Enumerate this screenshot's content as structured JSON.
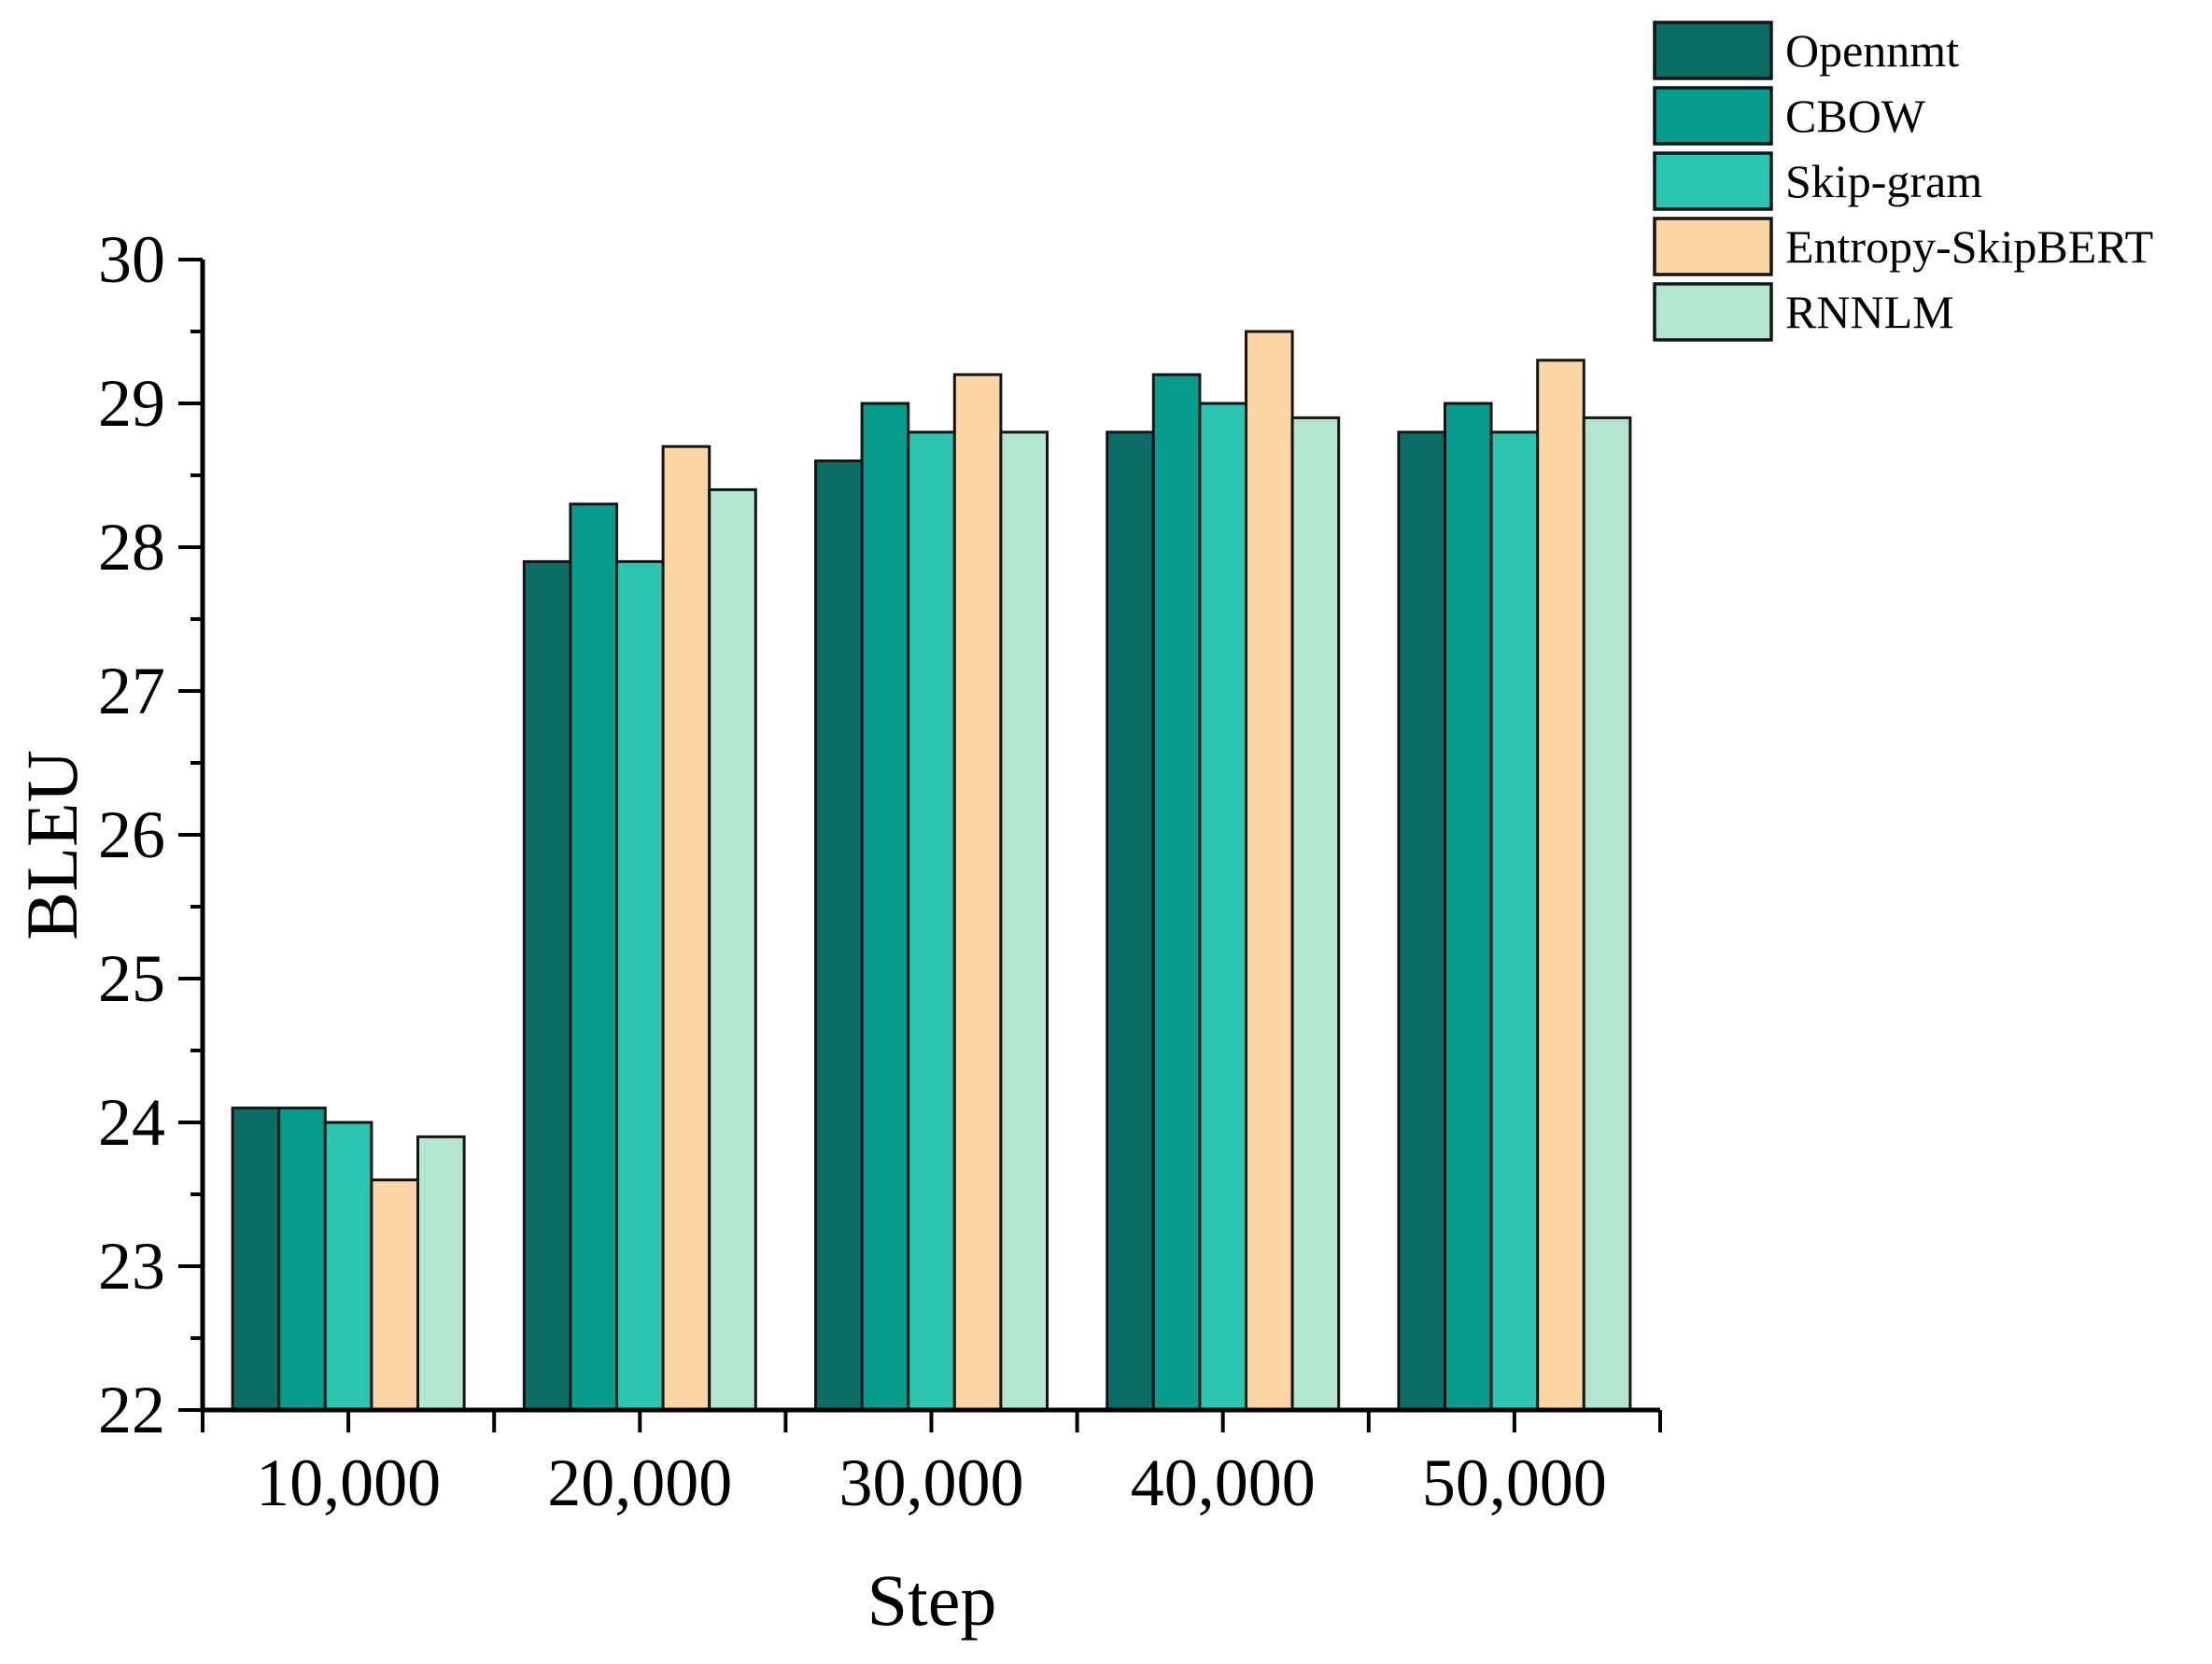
{
  "figure": {
    "background": "#ffffff",
    "axis_color": "#000000",
    "bar_edge_color": "#141414"
  },
  "chart_data": {
    "type": "bar",
    "title": "",
    "xlabel": "Step",
    "ylabel": "BLEU",
    "categories": [
      "10,000",
      "20,000",
      "30,000",
      "40,000",
      "50,000"
    ],
    "series": [
      {
        "name": "Opennmt",
        "color": "#0a6e66",
        "values": [
          24.1,
          27.9,
          28.6,
          28.8,
          28.8
        ]
      },
      {
        "name": "CBOW",
        "color": "#089c8d",
        "values": [
          24.1,
          28.3,
          29.0,
          29.2,
          29.0
        ]
      },
      {
        "name": "Skip-gram",
        "color": "#2cc5b1",
        "values": [
          24.0,
          27.9,
          28.8,
          29.0,
          28.8
        ]
      },
      {
        "name": "Entropy-SkipBERT",
        "color": "#fbd6a4",
        "values": [
          23.6,
          28.7,
          29.2,
          29.5,
          29.3
        ]
      },
      {
        "name": "RNNLM",
        "color": "#b3e6d1",
        "values": [
          23.9,
          28.4,
          28.8,
          28.9,
          28.9
        ]
      }
    ],
    "ylim": [
      22,
      30
    ],
    "ytick_step": 1,
    "yminor_step": 0.5,
    "ytick_labels": [
      "22",
      "23",
      "24",
      "25",
      "26",
      "27",
      "28",
      "29",
      "30"
    ],
    "grid": false,
    "legend_position": "top-right"
  }
}
